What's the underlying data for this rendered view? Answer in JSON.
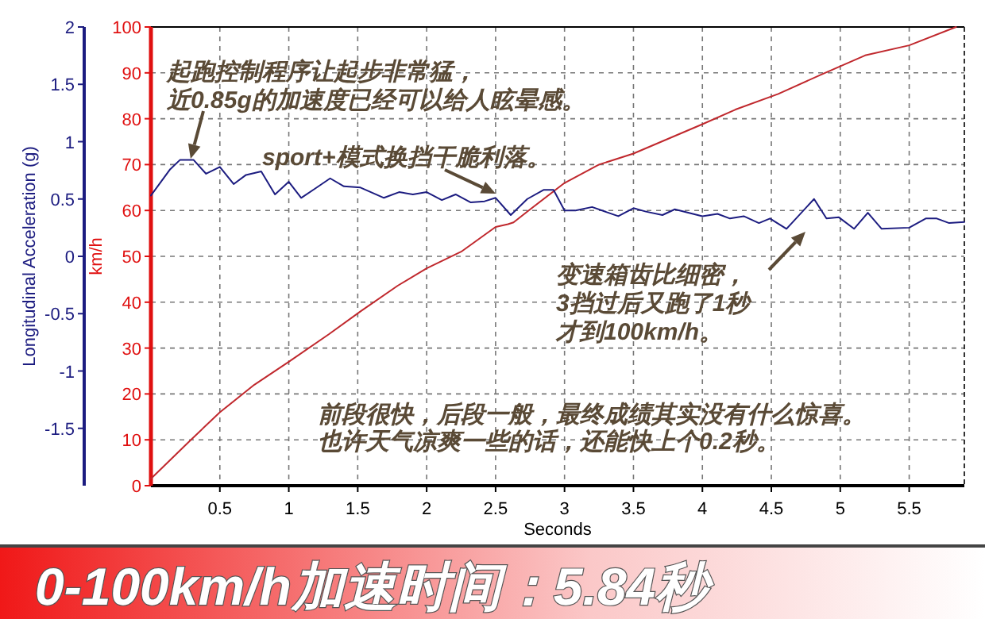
{
  "chart_data": {
    "type": "line",
    "title": "0-100km/h加速时间：5.84秒",
    "xlabel": "Seconds",
    "ylabel": "km/h",
    "y2label": "Longitudinal Acceleration (g)",
    "xlim": [
      0,
      5.9
    ],
    "xticks": [
      0.5,
      1,
      1.5,
      2,
      2.5,
      3,
      3.5,
      4,
      4.5,
      5,
      5.5
    ],
    "ylim": [
      0,
      100
    ],
    "yticks": [
      0,
      10,
      20,
      30,
      40,
      50,
      60,
      70,
      80,
      90,
      100
    ],
    "y2lim": [
      -2,
      2
    ],
    "y2ticks": [
      -1.5,
      -1,
      -0.5,
      0,
      0.5,
      1,
      1.5,
      2
    ],
    "grid": true,
    "marker": "none",
    "line_style": "solid",
    "series": [
      {
        "color": "#c0282d",
        "x": [
          0,
          0.29,
          0.5,
          0.75,
          1.0,
          1.29,
          1.52,
          1.79,
          2.0,
          2.25,
          2.5,
          2.59,
          2.63,
          2.74,
          3.0,
          3.25,
          3.5,
          4.0,
          4.24,
          4.55,
          4.86,
          5.18,
          5.5,
          5.84
        ],
        "values": [
          1.5,
          10,
          16,
          22,
          27,
          33,
          38,
          43.6,
          47.4,
          51,
          56.4,
          57,
          57.4,
          60,
          66,
          70,
          72.4,
          78.8,
          82,
          85.4,
          89.6,
          93.8,
          96,
          100
        ]
      },
      {
        "color": "#1c1c80",
        "axis": "y2",
        "x": [
          0,
          0.14,
          0.21,
          0.31,
          0.4,
          0.5,
          0.6,
          0.69,
          0.8,
          0.9,
          1.0,
          1.09,
          1.19,
          1.3,
          1.4,
          1.52,
          1.69,
          1.8,
          1.9,
          2.0,
          2.11,
          2.21,
          2.32,
          2.42,
          2.5,
          2.61,
          2.73,
          2.85,
          2.92,
          3.0,
          3.08,
          3.2,
          3.39,
          3.5,
          3.59,
          3.71,
          3.8,
          4.0,
          4.11,
          4.2,
          4.3,
          4.41,
          4.49,
          4.61,
          4.81,
          4.9,
          4.99,
          5.1,
          5.2,
          5.3,
          5.5,
          5.62,
          5.7,
          5.79,
          5.9
        ],
        "values": [
          0.53,
          0.76,
          0.84,
          0.84,
          0.72,
          0.78,
          0.63,
          0.71,
          0.74,
          0.54,
          0.65,
          0.51,
          0.59,
          0.68,
          0.61,
          0.6,
          0.51,
          0.56,
          0.54,
          0.56,
          0.49,
          0.54,
          0.47,
          0.48,
          0.51,
          0.36,
          0.5,
          0.58,
          0.58,
          0.4,
          0.4,
          0.43,
          0.35,
          0.42,
          0.39,
          0.36,
          0.41,
          0.35,
          0.37,
          0.33,
          0.35,
          0.29,
          0.33,
          0.24,
          0.5,
          0.33,
          0.34,
          0.24,
          0.38,
          0.24,
          0.25,
          0.33,
          0.33,
          0.29,
          0.3
        ]
      }
    ],
    "annotations": [
      "起跑控制程序让起步非常猛，",
      "近0.85g的加速度已经可以给人眩晕感。",
      "sport+模式换挡干脆利落。",
      "变速箱齿比细密，",
      "3挡过后又跑了1秒",
      "才到100km/h。",
      "前段很快，后段一般，最终成绩其实没有什么惊喜。",
      "也许天气凉爽一些的话，还能快上个0.2秒。"
    ]
  }
}
